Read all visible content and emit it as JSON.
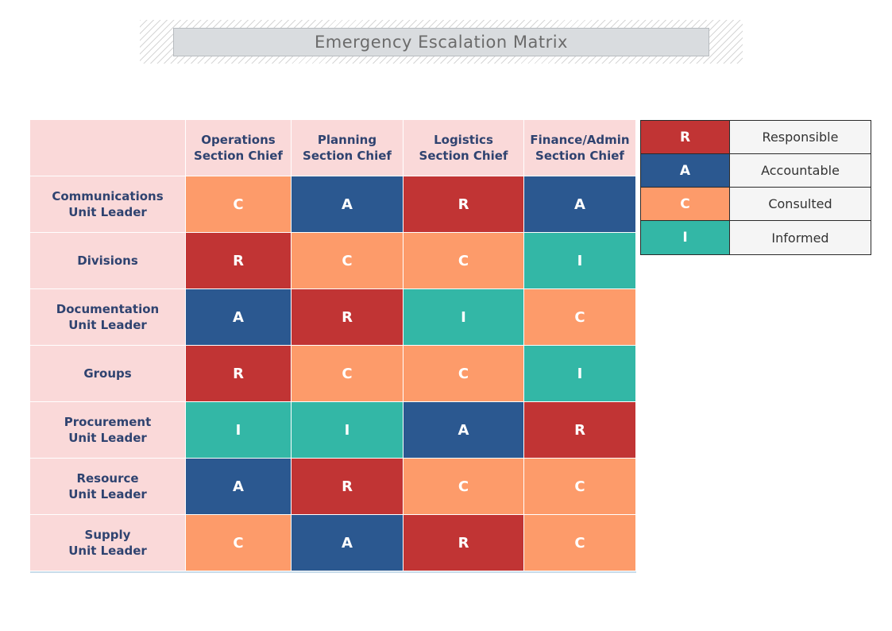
{
  "title": "Emergency Escalation Matrix",
  "colors": {
    "R": "#c13434",
    "A": "#2b5890",
    "C": "#fd9b6a",
    "I": "#33b7a6",
    "header_bg": "#fad9d9",
    "header_text": "#2f4370"
  },
  "matrix": {
    "columns": [
      "Operations\nSection Chief",
      "Planning\nSection Chief",
      "Logistics\nSection Chief",
      "Finance/Admin\nSection Chief"
    ],
    "rows": [
      {
        "label": "Communications\nUnit Leader",
        "values": [
          "C",
          "A",
          "R",
          "A"
        ]
      },
      {
        "label": "Divisions",
        "values": [
          "R",
          "C",
          "C",
          "I"
        ]
      },
      {
        "label": "Documentation\nUnit Leader",
        "values": [
          "A",
          "R",
          "I",
          "C"
        ]
      },
      {
        "label": "Groups",
        "values": [
          "R",
          "C",
          "C",
          "I"
        ]
      },
      {
        "label": "Procurement\nUnit Leader",
        "values": [
          "I",
          "I",
          "A",
          "R"
        ]
      },
      {
        "label": "Resource\nUnit Leader",
        "values": [
          "A",
          "R",
          "C",
          "C"
        ]
      },
      {
        "label": "Supply\nUnit Leader",
        "values": [
          "C",
          "A",
          "R",
          "C"
        ]
      }
    ]
  },
  "legend": [
    {
      "key": "R",
      "label": "Responsible"
    },
    {
      "key": "A",
      "label": "Accountable"
    },
    {
      "key": "C",
      "label": "Consulted"
    },
    {
      "key": "I",
      "label": "Informed"
    }
  ]
}
